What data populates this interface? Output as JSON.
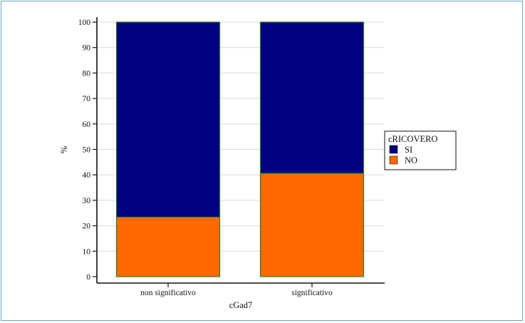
{
  "chart_data": {
    "type": "bar",
    "stacked": true,
    "xlabel": "cGad7",
    "ylabel": "%",
    "ylim": [
      0,
      100
    ],
    "yticks": [
      0,
      10,
      20,
      30,
      40,
      50,
      60,
      70,
      80,
      90,
      100
    ],
    "grid": "horizontal",
    "categories": [
      "non significativo",
      "significativo"
    ],
    "series": [
      {
        "name": "NO",
        "values": [
          23.4,
          40.6
        ],
        "color": "#ff6a00"
      },
      {
        "name": "SI",
        "values": [
          76.6,
          59.4
        ],
        "color": "#000080"
      }
    ],
    "bar_edge_color": "#2e7d2e",
    "legend": {
      "title": "cRICOVERO",
      "entries": [
        "SI",
        "NO"
      ],
      "placement": "right"
    }
  }
}
